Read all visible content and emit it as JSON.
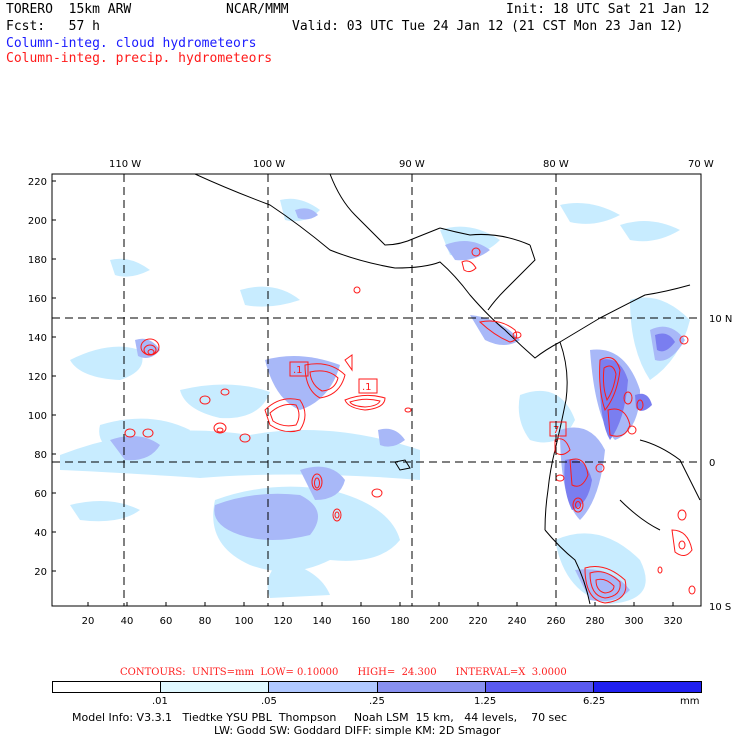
{
  "header": {
    "model": "TORERO  15km ARW",
    "org": "NCAR/MMM",
    "init": "Init: 18 UTC Sat 21 Jan 12",
    "fcst": "Fcst:   57 h",
    "valid": "Valid: 03 UTC Tue 24 Jan 12 (21 CST Mon 23 Jan 12)",
    "field_cloud": "Column-integ. cloud hydrometeors",
    "field_precip": "Column-integ. precip. hydrometeors"
  },
  "map": {
    "top_lon_labels": [
      "110 W",
      "100 W",
      "90 W",
      "80 W",
      "70 W"
    ],
    "left_ticks": [
      "220",
      "200",
      "180",
      "160",
      "140",
      "120",
      "100",
      "80",
      "60",
      "40",
      "20"
    ],
    "bottom_ticks": [
      "20",
      "40",
      "60",
      "80",
      "100",
      "120",
      "140",
      "160",
      "180",
      "200",
      "220",
      "240",
      "260",
      "280",
      "300",
      "320"
    ],
    "right_lat_labels": [
      "10 N",
      "0",
      "10 S"
    ],
    "contour_labels": [
      ".1",
      ".1",
      "7"
    ]
  },
  "contours_text": "CONTOURS:  UNITS=mm  LOW= 0.10000      HIGH=  24.300      INTERVAL=X  3.0000",
  "colorbar": {
    "tick_labels": [
      ".01",
      ".05",
      ".25",
      "1.25",
      "6.25"
    ],
    "unit": "mm",
    "colors": [
      "#ffffff",
      "#e0f8ff",
      "#b0c8ff",
      "#8890f0",
      "#5a5af0",
      "#2020f0"
    ]
  },
  "footer": {
    "line1": "Model Info: V3.3.1   Tiedtke YSU PBL  Thompson     Noah LSM  15 km,   44 levels,    70 sec",
    "line2": "LW: Godd SW: Goddard DIFF: simple KM: 2D Smagor"
  }
}
